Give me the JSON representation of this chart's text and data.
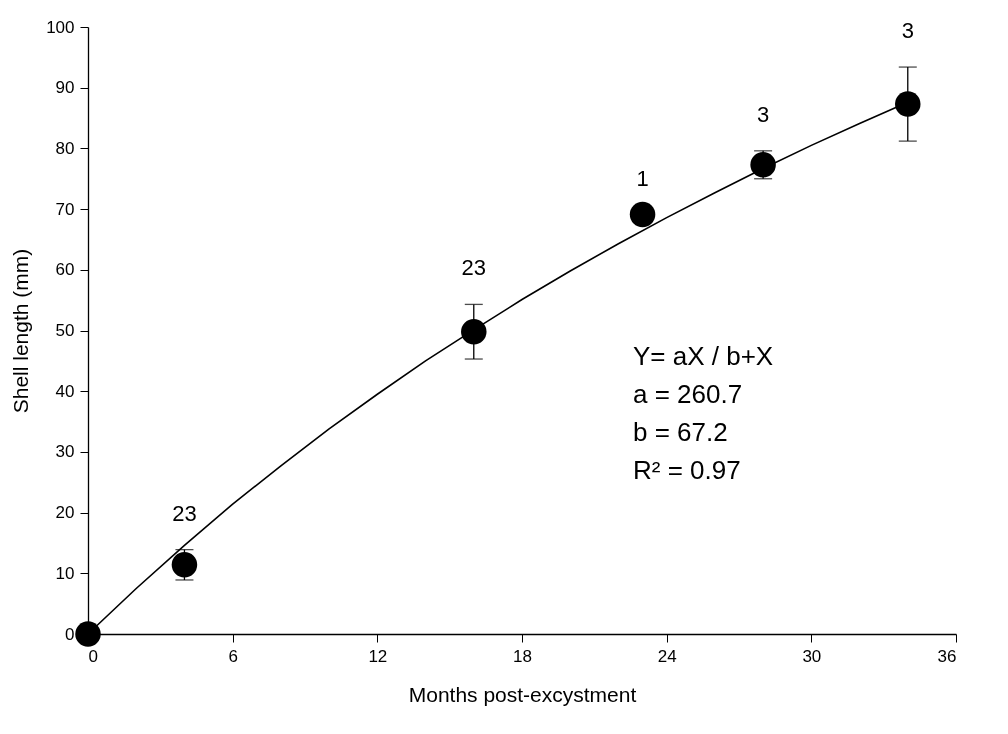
{
  "chart_data": {
    "type": "scatter",
    "xlabel": "Months post-excystment",
    "ylabel": "Shell length (mm)",
    "xlim": [
      0,
      36
    ],
    "xticks": [
      0,
      6,
      12,
      18,
      24,
      30,
      36
    ],
    "ylim": [
      0,
      100
    ],
    "yticks": [
      0,
      10,
      20,
      30,
      40,
      50,
      60,
      70,
      80,
      90,
      100
    ],
    "grid": false,
    "marker": "circle",
    "series": [
      {
        "color": "#000000",
        "x": [
          0,
          4,
          16,
          23,
          28,
          34
        ],
        "values": [
          0,
          11.4,
          49.8,
          69.1,
          77.3,
          87.3
        ],
        "errors": [
          null,
          2.5,
          4.5,
          null,
          2.3,
          6.1
        ]
      },
      {
        "type": "line",
        "color": "#000000",
        "marker": "none",
        "line_style": "solid",
        "x": [
          0,
          2,
          4,
          6,
          8,
          10,
          12,
          14,
          16,
          18,
          20,
          22,
          24,
          26,
          28,
          30,
          32,
          34
        ],
        "values": [
          0,
          7.5,
          14.6,
          21.4,
          27.7,
          33.8,
          39.5,
          45.0,
          50.1,
          55.1,
          59.8,
          64.3,
          68.6,
          72.7,
          76.7,
          80.5,
          84.1,
          87.6
        ]
      }
    ],
    "annotations": [
      {
        "text": "23",
        "x": 4,
        "y": 11.4
      },
      {
        "text": "23",
        "x": 16,
        "y": 49.8
      },
      {
        "text": "1",
        "x": 23,
        "y": 69.1
      },
      {
        "text": "3",
        "x": 28,
        "y": 77.3
      },
      {
        "text": "3",
        "x": 34,
        "y": 87.3
      },
      "Y= aX / b+X",
      "a = 260.7",
      "b = 67.2",
      "R² = 0.97"
    ]
  }
}
